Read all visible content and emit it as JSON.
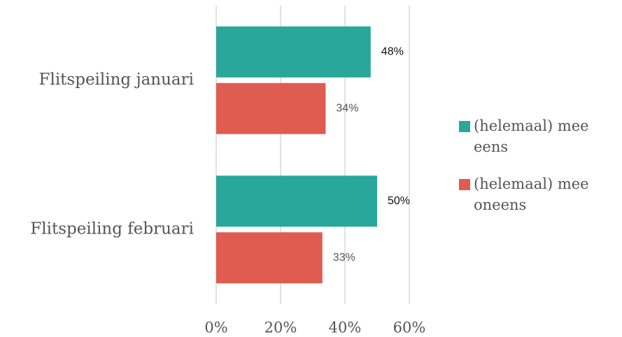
{
  "chart_data": {
    "type": "bar",
    "orientation": "horizontal",
    "categories": [
      "Flitspeiling januari",
      "Flitspeiling februari"
    ],
    "series": [
      {
        "name": "(helemaal) mee eens",
        "color": "#2aa79b",
        "values": [
          48,
          50
        ],
        "value_labels": [
          "48%",
          "50%"
        ]
      },
      {
        "name": "(helemaal) mee oneens",
        "color": "#e05c50",
        "values": [
          34,
          33
        ],
        "value_labels": [
          "34%",
          "33%"
        ]
      }
    ],
    "xlim": [
      0,
      60
    ],
    "xticks": [
      {
        "value": 0,
        "label": "0%"
      },
      {
        "value": 20,
        "label": "20%"
      },
      {
        "value": 40,
        "label": "40%"
      },
      {
        "value": 60,
        "label": "60%"
      }
    ],
    "grid": true,
    "legend": "right"
  }
}
